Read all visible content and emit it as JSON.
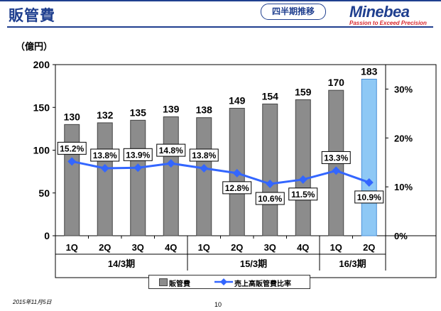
{
  "header": {
    "title": "販管費",
    "badge": "四半期推移",
    "logo": "Minebea",
    "tagline": "Passion to Exceed Precision"
  },
  "unit_label": "（億円）",
  "footer": {
    "date": "2015年11月5日",
    "page": "10"
  },
  "colors": {
    "accent": "#1f3f8f",
    "bar": "#8c8c8c",
    "bar_highlight": "#8ec8f5",
    "line": "#3366ff",
    "tagline": "#d9262e"
  },
  "chart_data": {
    "type": "bar",
    "categories": [
      "1Q",
      "2Q",
      "3Q",
      "4Q",
      "1Q",
      "2Q",
      "3Q",
      "4Q",
      "1Q",
      "2Q"
    ],
    "groups": [
      {
        "label": "14/3期",
        "count": 4
      },
      {
        "label": "15/3期",
        "count": 4
      },
      {
        "label": "16/3期",
        "count": 2
      }
    ],
    "series": [
      {
        "name": "販管費",
        "type": "bar",
        "axis": "left",
        "values": [
          130,
          132,
          135,
          139,
          138,
          149,
          154,
          159,
          170,
          183
        ],
        "labels": [
          "130",
          "132",
          "135",
          "139",
          "138",
          "149",
          "154",
          "159",
          "170",
          "183"
        ]
      },
      {
        "name": "売上高販管費比率",
        "type": "line",
        "axis": "right",
        "values": [
          15.2,
          13.8,
          13.9,
          14.8,
          13.8,
          12.8,
          10.6,
          11.5,
          13.3,
          10.9
        ],
        "labels": [
          "15.2%",
          "13.8%",
          "13.9%",
          "14.8%",
          "13.8%",
          "12.8%",
          "10.6%",
          "11.5%",
          "13.3%",
          "10.9%"
        ]
      }
    ],
    "highlight_index": 9,
    "y_left": {
      "min": 0,
      "max": 200,
      "ticks": [
        "0",
        "50",
        "100",
        "150",
        "200"
      ]
    },
    "y_right": {
      "min": 0,
      "max": 35,
      "ticks": [
        "0%",
        "10%",
        "20%",
        "30%"
      ]
    },
    "legend_position": "bottom",
    "grid": false
  }
}
